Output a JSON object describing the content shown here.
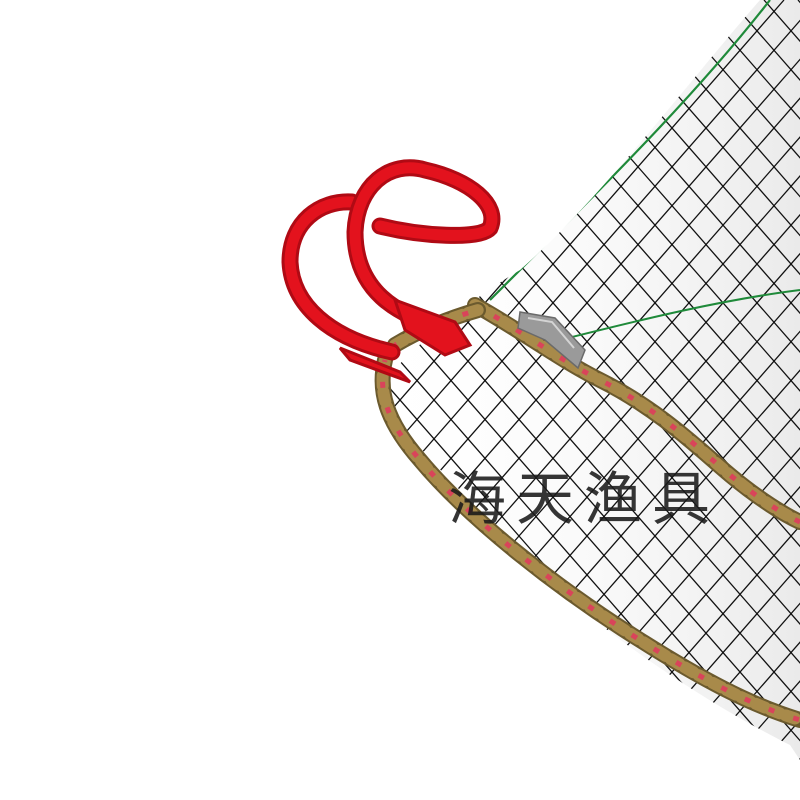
{
  "photo": {
    "subject": "fishing-net-trap",
    "watermark_text": "海天渔具",
    "colors": {
      "background": "#ffffff",
      "hook": "#e3121d",
      "hook_shade": "#b00a14",
      "net": "#111111",
      "green_line": "#1f8a3a",
      "rope_tan": "#a88a4a",
      "rope_pink": "#d9445a",
      "rope_dark": "#6b5a2e",
      "clip": "#9a9a9a"
    }
  }
}
